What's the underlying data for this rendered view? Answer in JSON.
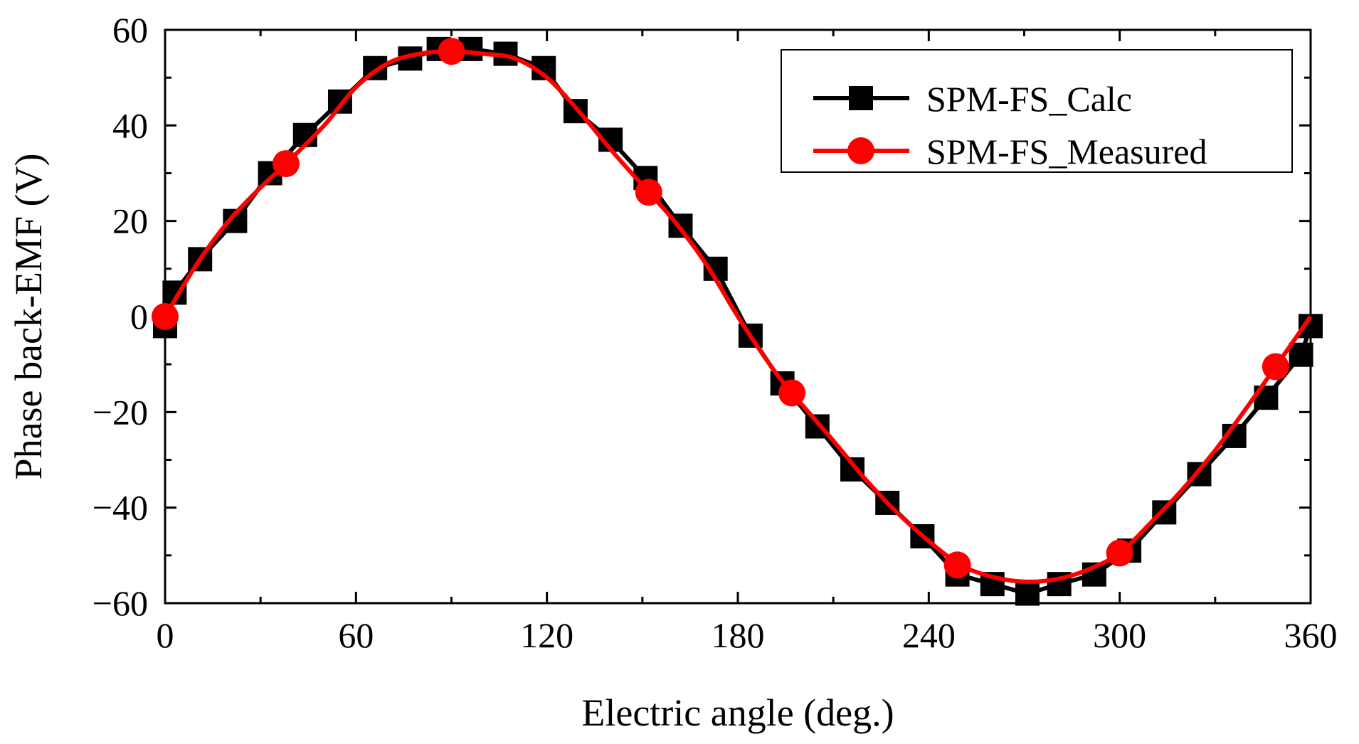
{
  "chart_data": {
    "type": "line",
    "title": "",
    "xlabel": "Electric angle (deg.)",
    "ylabel": "Phase back-EMF (V)",
    "xlim": [
      0,
      360
    ],
    "ylim": [
      -60,
      60
    ],
    "xticks": [
      0,
      60,
      120,
      180,
      240,
      300,
      360
    ],
    "yticks": [
      60,
      40,
      20,
      0,
      -20,
      -40,
      -60
    ],
    "xtick_labels": [
      "0",
      "60",
      "120",
      "180",
      "240",
      "300",
      "360"
    ],
    "ytick_labels": [
      "60",
      "40",
      "20",
      "0",
      "−20",
      "−40",
      "−60"
    ],
    "grid": false,
    "legend_position": "top-right",
    "series": [
      {
        "name": "SPM-FS_Calc",
        "color": "#000000",
        "marker": "square",
        "smooth": false,
        "x": [
          0,
          3,
          11,
          22,
          33,
          44,
          55,
          66,
          77,
          86,
          96,
          107,
          119,
          129,
          140,
          151,
          162,
          173,
          184,
          194,
          205,
          216,
          227,
          238,
          249,
          260,
          271,
          281,
          292,
          303,
          314,
          325,
          336,
          346,
          357,
          360
        ],
        "y": [
          -2,
          5,
          12,
          20,
          30,
          38,
          45,
          52,
          54,
          56,
          56,
          55,
          52,
          43,
          37,
          29,
          19,
          10,
          -4,
          -14,
          -23,
          -32,
          -39,
          -46,
          -54,
          -56,
          -58,
          -56,
          -54,
          -49,
          -41,
          -33,
          -25,
          -17,
          -8,
          -2
        ]
      },
      {
        "name": "SPM-FS_Measured",
        "color": "#ff0000",
        "marker": "circle",
        "smooth": true,
        "x": [
          0,
          10,
          20,
          30,
          38,
          50,
          60,
          70,
          80,
          90,
          100,
          110,
          120,
          130,
          140,
          152,
          160,
          170,
          180,
          190,
          197,
          210,
          220,
          230,
          240,
          250,
          260,
          270,
          280,
          290,
          300,
          310,
          320,
          330,
          340,
          349,
          360
        ],
        "y": [
          0,
          11,
          20,
          27,
          32,
          40,
          48,
          53,
          55,
          55.5,
          55,
          54,
          50,
          43,
          35,
          26,
          20,
          11,
          0,
          -10,
          -16,
          -26,
          -34,
          -41,
          -47,
          -52,
          -54.5,
          -55.5,
          -55,
          -53,
          -49.5,
          -43,
          -36,
          -28,
          -19,
          -10.5,
          0
        ],
        "marker_x": [
          0,
          38,
          90,
          152,
          197,
          249,
          300,
          349
        ],
        "marker_y": [
          0,
          32,
          55.5,
          26,
          -16,
          -52,
          -49.5,
          -10.5
        ]
      }
    ]
  }
}
